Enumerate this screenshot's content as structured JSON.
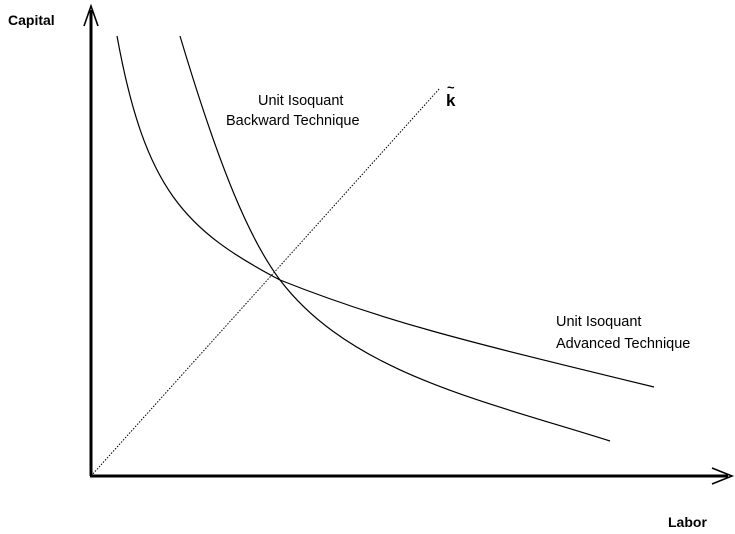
{
  "axes": {
    "y_label": "Capital",
    "x_label": "Labor"
  },
  "curves": {
    "backward": {
      "label_line1": "Unit Isoquant",
      "label_line2": "Backward Technique"
    },
    "advanced": {
      "label_line1": "Unit Isoquant",
      "label_line2": "Advanced Technique"
    }
  },
  "ray": {
    "label": "k",
    "accent": "~"
  }
}
